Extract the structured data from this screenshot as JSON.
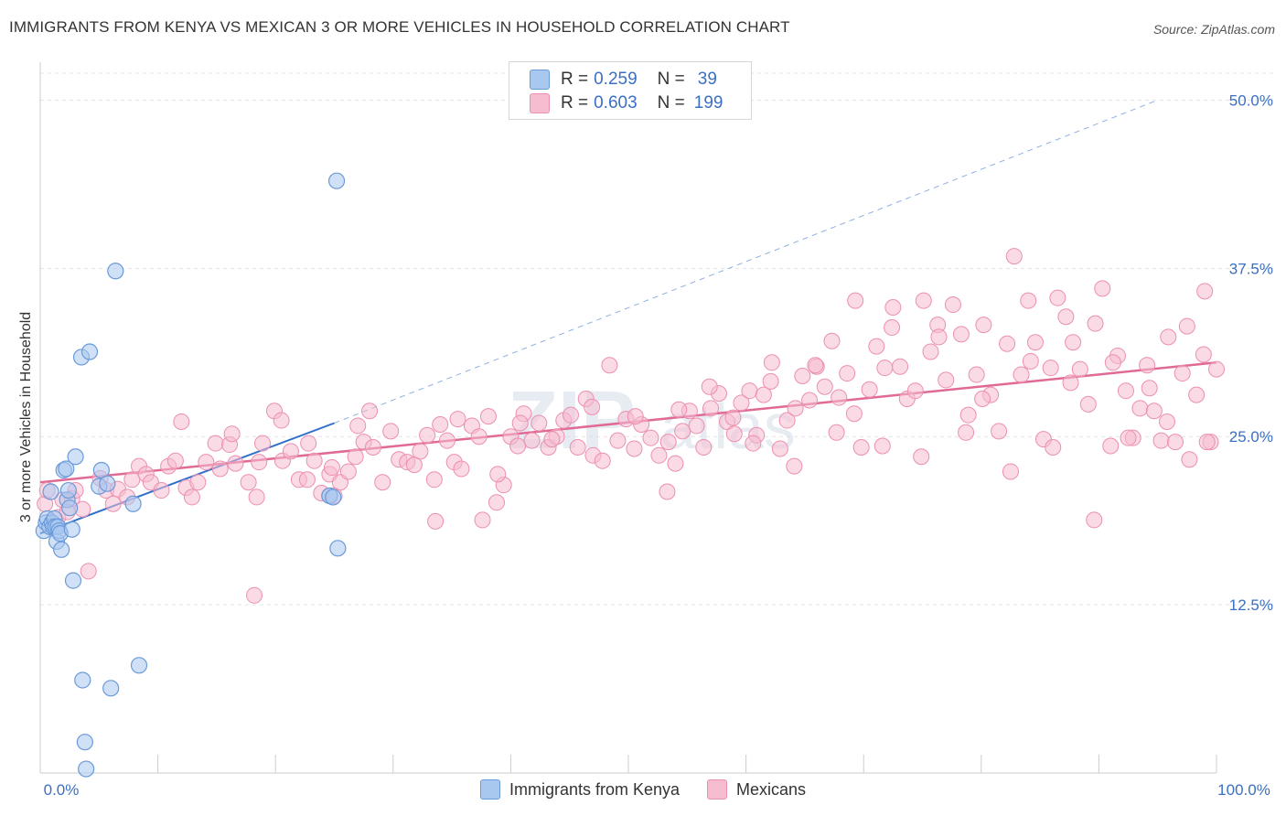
{
  "title": "IMMIGRANTS FROM KENYA VS MEXICAN 3 OR MORE VEHICLES IN HOUSEHOLD CORRELATION CHART",
  "source": "Source: ZipAtlas.com",
  "watermark": "ZIPatlas",
  "legend": {
    "rows": [
      {
        "r_label": "R =",
        "r_value": "0.259",
        "n_label": "N =",
        "n_value": "39"
      },
      {
        "r_label": "R =",
        "r_value": "0.603",
        "n_label": "N =",
        "n_value": "199"
      }
    ]
  },
  "bottom_legend": [
    "Immigrants from Kenya",
    "Mexicans"
  ],
  "colors": {
    "kenya_fill": "#a9c8f0",
    "kenya_stroke": "#6b9ad8",
    "kenya_line": "#2f6fcc",
    "mex_fill": "#f6bcd0",
    "mex_stroke": "#ec8fb0",
    "mex_line": "#e06a95",
    "tick_label": "#3a6fc4",
    "grid": "#e3e3e3"
  },
  "chart_data": {
    "type": "scatter",
    "xlabel": "",
    "ylabel": "3 or more Vehicles in Household",
    "xlim": [
      0,
      100
    ],
    "ylim": [
      0,
      52
    ],
    "x_tick_labels": [
      "0.0%",
      "100.0%"
    ],
    "y_ticks": [
      12.5,
      25.0,
      37.5,
      50.0
    ],
    "y_tick_labels": [
      "12.5%",
      "25.0%",
      "37.5%",
      "50.0%"
    ],
    "grid": true,
    "series": [
      {
        "name": "Immigrants from Kenya",
        "trend": {
          "x0": 0,
          "y0": 17.8,
          "x1": 25,
          "y1": 26.0,
          "extended_to": [
            95,
            50
          ]
        },
        "points": [
          [
            0.3,
            18.0
          ],
          [
            0.5,
            18.6
          ],
          [
            0.6,
            18.9
          ],
          [
            0.8,
            18.3
          ],
          [
            0.9,
            20.9
          ],
          [
            1.0,
            18.6
          ],
          [
            1.1,
            18.3
          ],
          [
            1.2,
            18.9
          ],
          [
            1.3,
            18.3
          ],
          [
            1.4,
            17.2
          ],
          [
            1.5,
            18.3
          ],
          [
            1.6,
            18.0
          ],
          [
            1.7,
            17.8
          ],
          [
            1.8,
            16.6
          ],
          [
            2.0,
            22.5
          ],
          [
            2.2,
            22.6
          ],
          [
            2.3,
            20.3
          ],
          [
            2.4,
            21.0
          ],
          [
            2.5,
            19.7
          ],
          [
            2.7,
            18.1
          ],
          [
            2.8,
            14.3
          ],
          [
            3.0,
            23.5
          ],
          [
            3.5,
            30.9
          ],
          [
            3.6,
            6.9
          ],
          [
            3.8,
            2.3
          ],
          [
            3.9,
            0.3
          ],
          [
            4.2,
            31.3
          ],
          [
            5.0,
            21.3
          ],
          [
            5.2,
            22.5
          ],
          [
            5.7,
            21.5
          ],
          [
            6.0,
            6.3
          ],
          [
            6.4,
            37.3
          ],
          [
            7.9,
            20.0
          ],
          [
            8.4,
            8.0
          ],
          [
            24.6,
            20.6
          ],
          [
            24.6,
            20.6
          ],
          [
            24.9,
            20.5
          ],
          [
            25.2,
            44.0
          ],
          [
            25.3,
            16.7
          ]
        ]
      },
      {
        "name": "Mexicans",
        "trend": {
          "x0": 0,
          "y0": 21.6,
          "x1": 100,
          "y1": 30.5
        },
        "points": [
          [
            0.4,
            20.0
          ],
          [
            0.6,
            21.0
          ],
          [
            1.5,
            19.0
          ],
          [
            1.9,
            20.3
          ],
          [
            2.3,
            19.4
          ],
          [
            2.7,
            20.4
          ],
          [
            3.0,
            21.0
          ],
          [
            3.6,
            19.6
          ],
          [
            4.1,
            15.0
          ],
          [
            5.1,
            21.9
          ],
          [
            5.6,
            21.0
          ],
          [
            6.2,
            20.0
          ],
          [
            6.6,
            21.1
          ],
          [
            7.4,
            20.5
          ],
          [
            7.8,
            21.8
          ],
          [
            8.4,
            22.8
          ],
          [
            9.0,
            22.2
          ],
          [
            9.4,
            21.6
          ],
          [
            10.3,
            21.0
          ],
          [
            10.9,
            22.8
          ],
          [
            11.5,
            23.2
          ],
          [
            12.4,
            21.2
          ],
          [
            12.9,
            20.5
          ],
          [
            13.4,
            21.6
          ],
          [
            14.1,
            23.1
          ],
          [
            14.9,
            24.5
          ],
          [
            15.3,
            22.6
          ],
          [
            16.1,
            24.4
          ],
          [
            16.3,
            25.2
          ],
          [
            16.6,
            23.0
          ],
          [
            17.7,
            21.6
          ],
          [
            18.4,
            20.5
          ],
          [
            18.6,
            23.1
          ],
          [
            18.9,
            24.5
          ],
          [
            19.9,
            26.9
          ],
          [
            20.6,
            23.2
          ],
          [
            21.3,
            23.9
          ],
          [
            22.0,
            21.8
          ],
          [
            22.7,
            21.8
          ],
          [
            22.8,
            24.5
          ],
          [
            23.3,
            23.2
          ],
          [
            23.9,
            20.8
          ],
          [
            24.6,
            22.2
          ],
          [
            24.8,
            22.7
          ],
          [
            25.0,
            20.6
          ],
          [
            25.5,
            21.6
          ],
          [
            26.2,
            22.4
          ],
          [
            26.8,
            23.5
          ],
          [
            27.0,
            25.8
          ],
          [
            27.5,
            24.6
          ],
          [
            28.3,
            24.2
          ],
          [
            29.1,
            21.6
          ],
          [
            29.8,
            25.4
          ],
          [
            30.5,
            23.3
          ],
          [
            31.2,
            23.1
          ],
          [
            31.8,
            22.9
          ],
          [
            32.3,
            23.9
          ],
          [
            32.9,
            25.1
          ],
          [
            33.5,
            21.8
          ],
          [
            34.0,
            25.9
          ],
          [
            34.6,
            24.7
          ],
          [
            35.2,
            23.1
          ],
          [
            35.8,
            22.6
          ],
          [
            36.7,
            25.8
          ],
          [
            37.3,
            25.0
          ],
          [
            38.1,
            26.5
          ],
          [
            38.8,
            20.1
          ],
          [
            39.4,
            21.4
          ],
          [
            40.0,
            25.0
          ],
          [
            40.6,
            24.3
          ],
          [
            41.1,
            26.7
          ],
          [
            41.8,
            24.7
          ],
          [
            42.4,
            26.0
          ],
          [
            43.2,
            24.2
          ],
          [
            43.9,
            25.0
          ],
          [
            44.5,
            26.2
          ],
          [
            45.1,
            26.6
          ],
          [
            45.7,
            24.2
          ],
          [
            46.4,
            27.8
          ],
          [
            47.0,
            23.6
          ],
          [
            47.8,
            23.2
          ],
          [
            48.4,
            30.3
          ],
          [
            49.1,
            24.7
          ],
          [
            49.8,
            26.3
          ],
          [
            50.5,
            24.1
          ],
          [
            51.1,
            25.9
          ],
          [
            51.9,
            24.9
          ],
          [
            52.6,
            23.6
          ],
          [
            53.3,
            20.9
          ],
          [
            54.0,
            23.0
          ],
          [
            54.6,
            25.4
          ],
          [
            55.2,
            26.9
          ],
          [
            55.8,
            25.8
          ],
          [
            56.4,
            24.2
          ],
          [
            57.0,
            27.1
          ],
          [
            57.7,
            28.2
          ],
          [
            58.4,
            26.1
          ],
          [
            59.0,
            25.2
          ],
          [
            59.6,
            27.5
          ],
          [
            60.3,
            28.4
          ],
          [
            60.9,
            25.1
          ],
          [
            61.5,
            28.1
          ],
          [
            62.2,
            30.5
          ],
          [
            62.9,
            24.1
          ],
          [
            63.5,
            26.2
          ],
          [
            64.2,
            27.1
          ],
          [
            64.8,
            29.5
          ],
          [
            65.4,
            27.7
          ],
          [
            66.0,
            30.2
          ],
          [
            66.7,
            28.7
          ],
          [
            67.3,
            32.1
          ],
          [
            67.9,
            27.9
          ],
          [
            68.6,
            29.7
          ],
          [
            69.2,
            26.7
          ],
          [
            69.8,
            24.2
          ],
          [
            70.5,
            28.5
          ],
          [
            71.1,
            31.7
          ],
          [
            71.8,
            30.1
          ],
          [
            72.5,
            34.6
          ],
          [
            73.1,
            30.2
          ],
          [
            73.7,
            27.8
          ],
          [
            74.4,
            28.4
          ],
          [
            75.1,
            35.1
          ],
          [
            75.7,
            31.3
          ],
          [
            76.3,
            33.3
          ],
          [
            77.0,
            29.2
          ],
          [
            77.6,
            34.8
          ],
          [
            78.3,
            32.6
          ],
          [
            78.9,
            26.6
          ],
          [
            79.6,
            29.6
          ],
          [
            80.2,
            33.3
          ],
          [
            80.8,
            28.1
          ],
          [
            81.5,
            25.4
          ],
          [
            82.2,
            31.9
          ],
          [
            82.8,
            38.4
          ],
          [
            83.4,
            29.6
          ],
          [
            84.0,
            35.1
          ],
          [
            84.6,
            32.0
          ],
          [
            85.3,
            24.8
          ],
          [
            85.9,
            30.1
          ],
          [
            86.5,
            35.3
          ],
          [
            87.2,
            33.9
          ],
          [
            87.8,
            32.0
          ],
          [
            88.4,
            30.0
          ],
          [
            89.1,
            27.4
          ],
          [
            89.7,
            33.4
          ],
          [
            90.3,
            36.0
          ],
          [
            91.0,
            24.3
          ],
          [
            91.6,
            31.0
          ],
          [
            92.3,
            28.4
          ],
          [
            92.9,
            24.9
          ],
          [
            93.5,
            27.1
          ],
          [
            94.1,
            30.3
          ],
          [
            94.7,
            26.9
          ],
          [
            95.3,
            24.7
          ],
          [
            95.9,
            32.4
          ],
          [
            96.5,
            24.6
          ],
          [
            97.1,
            29.7
          ],
          [
            97.7,
            23.3
          ],
          [
            98.3,
            28.1
          ],
          [
            98.9,
            31.1
          ],
          [
            99.5,
            24.6
          ],
          [
            100.0,
            30.0
          ],
          [
            54.3,
            27.0
          ],
          [
            58.9,
            26.4
          ],
          [
            62.1,
            29.1
          ],
          [
            65.9,
            30.3
          ],
          [
            69.3,
            35.1
          ],
          [
            72.4,
            33.1
          ],
          [
            76.4,
            32.4
          ],
          [
            80.1,
            27.8
          ],
          [
            84.2,
            30.6
          ],
          [
            87.6,
            29.0
          ],
          [
            91.2,
            30.5
          ],
          [
            94.3,
            28.6
          ],
          [
            97.5,
            33.2
          ],
          [
            99.0,
            35.8
          ],
          [
            35.5,
            26.3
          ],
          [
            40.8,
            26.0
          ],
          [
            43.5,
            24.8
          ],
          [
            46.9,
            27.2
          ],
          [
            50.6,
            26.5
          ],
          [
            53.4,
            24.6
          ],
          [
            56.9,
            28.7
          ],
          [
            60.6,
            24.5
          ],
          [
            64.1,
            22.8
          ],
          [
            67.7,
            25.3
          ],
          [
            71.6,
            24.3
          ],
          [
            74.9,
            23.5
          ],
          [
            78.7,
            25.3
          ],
          [
            82.5,
            22.4
          ],
          [
            86.1,
            24.2
          ],
          [
            89.6,
            18.8
          ],
          [
            92.5,
            24.9
          ],
          [
            95.8,
            26.1
          ],
          [
            99.2,
            24.6
          ],
          [
            18.2,
            13.2
          ],
          [
            12.0,
            26.1
          ],
          [
            20.5,
            26.2
          ],
          [
            33.6,
            18.7
          ],
          [
            37.6,
            18.8
          ],
          [
            38.9,
            22.2
          ],
          [
            28.0,
            26.9
          ]
        ]
      }
    ]
  }
}
